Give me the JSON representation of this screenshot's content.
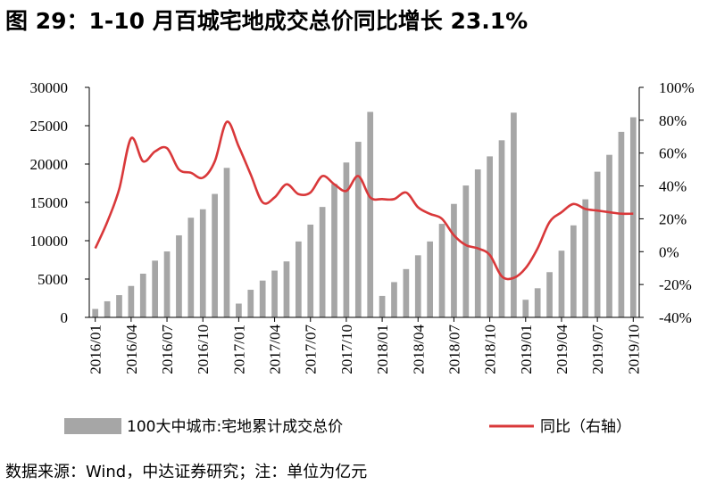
{
  "title": "图 29：1-10 月百城宅地成交总价同比增长 23.1%",
  "source": "数据来源：Wind，中达证券研究；注：单位为亿元",
  "colors": {
    "bar": "#a6a6a6",
    "line": "#d9383a",
    "axis": "#000000"
  },
  "chart_data": {
    "type": "bar+line",
    "x": [
      "2016/01",
      "2016/02",
      "2016/03",
      "2016/04",
      "2016/05",
      "2016/06",
      "2016/07",
      "2016/08",
      "2016/09",
      "2016/10",
      "2016/11",
      "2016/12",
      "2017/01",
      "2017/02",
      "2017/03",
      "2017/04",
      "2017/05",
      "2017/06",
      "2017/07",
      "2017/08",
      "2017/09",
      "2017/10",
      "2017/11",
      "2017/12",
      "2018/01",
      "2018/02",
      "2018/03",
      "2018/04",
      "2018/05",
      "2018/06",
      "2018/07",
      "2018/08",
      "2018/09",
      "2018/10",
      "2018/11",
      "2018/12",
      "2019/01",
      "2019/02",
      "2019/03",
      "2019/04",
      "2019/05",
      "2019/06",
      "2019/07",
      "2019/08",
      "2019/09",
      "2019/10"
    ],
    "x_tick_labels": [
      "2016/01",
      "2016/04",
      "2016/07",
      "2016/10",
      "2017/01",
      "2017/04",
      "2017/07",
      "2017/10",
      "2018/01",
      "2018/04",
      "2018/07",
      "2018/10",
      "2019/01",
      "2019/04",
      "2019/07",
      "2019/10"
    ],
    "series": [
      {
        "name": "100大中城市:宅地累计成交总价",
        "type": "bar",
        "axis": "left",
        "values": [
          1100,
          2100,
          2900,
          4100,
          5700,
          7400,
          8600,
          10700,
          13000,
          14100,
          16100,
          19500,
          1800,
          3600,
          4800,
          6100,
          7300,
          9900,
          12100,
          14400,
          17400,
          20200,
          22900,
          26800,
          2800,
          4600,
          6300,
          8100,
          9900,
          12200,
          14800,
          17200,
          19300,
          21000,
          23100,
          26700,
          2300,
          3800,
          5900,
          8700,
          12000,
          15400,
          19000,
          21200,
          24200,
          26100
        ]
      },
      {
        "name": "同比（右轴）",
        "type": "line",
        "axis": "right",
        "values": [
          2,
          18,
          38,
          69,
          55,
          61,
          63,
          50,
          48,
          45,
          55,
          79,
          64,
          47,
          30,
          33,
          41,
          35,
          36,
          46,
          41,
          37,
          46,
          33,
          32,
          32,
          36,
          27,
          23,
          20,
          10,
          4,
          2,
          -2,
          -15,
          -16,
          -10,
          2,
          18,
          24,
          29,
          26,
          25,
          24,
          23.1,
          23.1
        ]
      }
    ],
    "ylim_left": [
      0,
      30000
    ],
    "yticks_left": [
      0,
      5000,
      10000,
      15000,
      20000,
      25000,
      30000
    ],
    "ylim_right": [
      -40,
      100
    ],
    "yticks_right": [
      "-40%",
      "-20%",
      "0%",
      "20%",
      "40%",
      "60%",
      "80%",
      "100%"
    ],
    "legend": {
      "placement": "bottom"
    }
  }
}
